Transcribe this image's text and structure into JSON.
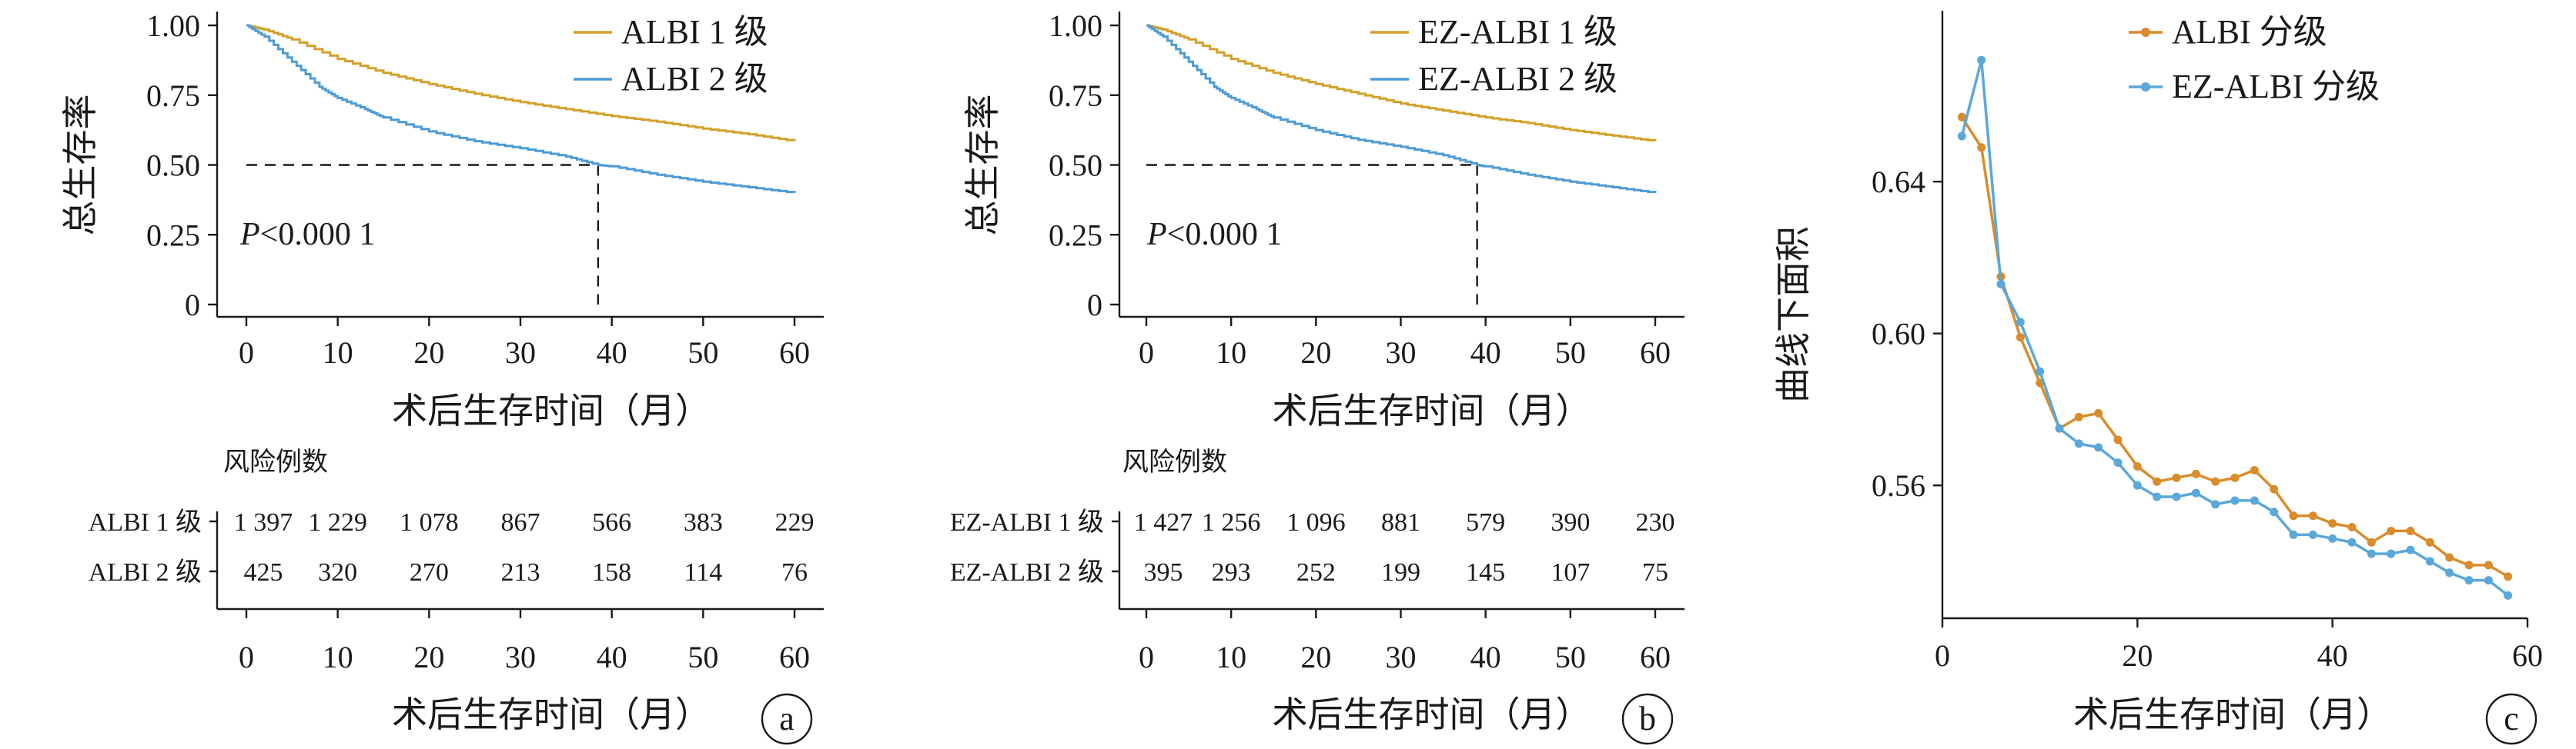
{
  "colors": {
    "orange": "#D4A02A",
    "blue": "#4E9BD5",
    "orange_c": "#D98C2B",
    "blue_c": "#5AA8DA",
    "axis": "#1a1a1a"
  },
  "chart_data": [
    {
      "panel": "a",
      "type": "line",
      "xlabel": "术后生存时间（月）",
      "ylabel": "总生存率",
      "xlim": [
        0,
        60
      ],
      "ylim": [
        0,
        1
      ],
      "xticks": [
        "0",
        "10",
        "20",
        "30",
        "40",
        "50",
        "60"
      ],
      "yticks": [
        "0",
        "0.25",
        "0.50",
        "0.75",
        "1.00"
      ],
      "legend_position": "top-right",
      "annotation_p": "P",
      "annotation_rest": "<0.000 1",
      "median_line": {
        "y": 0.5,
        "x": 38.5
      },
      "series": [
        {
          "name": "ALBI 1 级",
          "color": "orange",
          "x": [
            0,
            2,
            5,
            10,
            15,
            20,
            25,
            30,
            35,
            40,
            45,
            50,
            55,
            60
          ],
          "y": [
            1.0,
            0.985,
            0.95,
            0.88,
            0.83,
            0.79,
            0.755,
            0.725,
            0.7,
            0.675,
            0.655,
            0.63,
            0.61,
            0.585
          ]
        },
        {
          "name": "ALBI 2 级",
          "color": "blue",
          "x": [
            0,
            2,
            5,
            8,
            10,
            13,
            15,
            20,
            25,
            30,
            35,
            38.5,
            40,
            45,
            50,
            55,
            60
          ],
          "y": [
            1.0,
            0.96,
            0.87,
            0.78,
            0.74,
            0.7,
            0.67,
            0.62,
            0.585,
            0.56,
            0.53,
            0.5,
            0.495,
            0.465,
            0.44,
            0.42,
            0.4
          ]
        }
      ],
      "risk_table": {
        "title": "风险例数",
        "rows": [
          {
            "label": "ALBI 1 级",
            "values": [
              "1 397",
              "1 229",
              "1 078",
              "867",
              "566",
              "383",
              "229"
            ]
          },
          {
            "label": "ALBI 2 级",
            "values": [
              "425",
              "320",
              "270",
              "213",
              "158",
              "114",
              "76"
            ]
          }
        ],
        "xticks": [
          "0",
          "10",
          "20",
          "30",
          "40",
          "50",
          "60"
        ],
        "xlabel": "术后生存时间（月）"
      },
      "badge": "a"
    },
    {
      "panel": "b",
      "type": "line",
      "xlabel": "术后生存时间（月）",
      "ylabel": "总生存率",
      "xlim": [
        0,
        60
      ],
      "ylim": [
        0,
        1
      ],
      "xticks": [
        "0",
        "10",
        "20",
        "30",
        "40",
        "50",
        "60"
      ],
      "yticks": [
        "0",
        "0.25",
        "0.50",
        "0.75",
        "1.00"
      ],
      "legend_position": "top-right",
      "annotation_p": "P",
      "annotation_rest": "<0.000 1",
      "median_line": {
        "y": 0.5,
        "x": 39
      },
      "series": [
        {
          "name": "EZ-ALBI 1 级",
          "color": "orange",
          "x": [
            0,
            2,
            5,
            10,
            15,
            20,
            25,
            30,
            35,
            40,
            45,
            50,
            55,
            60
          ],
          "y": [
            1.0,
            0.985,
            0.95,
            0.88,
            0.83,
            0.79,
            0.755,
            0.72,
            0.695,
            0.67,
            0.65,
            0.625,
            0.605,
            0.585
          ]
        },
        {
          "name": "EZ-ALBI 2 级",
          "color": "blue",
          "x": [
            0,
            2,
            5,
            8,
            10,
            13,
            15,
            20,
            25,
            30,
            35,
            39,
            40,
            45,
            50,
            55,
            60
          ],
          "y": [
            1.0,
            0.96,
            0.87,
            0.78,
            0.74,
            0.7,
            0.67,
            0.625,
            0.59,
            0.565,
            0.535,
            0.5,
            0.495,
            0.465,
            0.44,
            0.42,
            0.4
          ]
        }
      ],
      "risk_table": {
        "title": "风险例数",
        "rows": [
          {
            "label": "EZ-ALBI 1 级",
            "values": [
              "1 427",
              "1 256",
              "1 096",
              "881",
              "579",
              "390",
              "230"
            ]
          },
          {
            "label": "EZ-ALBI 2 级",
            "values": [
              "395",
              "293",
              "252",
              "199",
              "145",
              "107",
              "75"
            ]
          }
        ],
        "xticks": [
          "0",
          "10",
          "20",
          "30",
          "40",
          "50",
          "60"
        ],
        "xlabel": "术后生存时间（月）"
      },
      "badge": "b"
    },
    {
      "panel": "c",
      "type": "line",
      "xlabel": "术后生存时间（月）",
      "ylabel": "曲线下面积",
      "xlim": [
        0,
        60
      ],
      "ylim": [
        0.525,
        0.685
      ],
      "xticks": [
        0,
        20,
        40,
        60
      ],
      "yticks": [
        0.56,
        0.6,
        0.64
      ],
      "legend_position": "top-center",
      "series": [
        {
          "name": "ALBI 分级",
          "color": "orange_c",
          "x": [
            2,
            4,
            6,
            8,
            10,
            12,
            14,
            16,
            18,
            20,
            22,
            24,
            26,
            28,
            30,
            32,
            34,
            36,
            38,
            40,
            42,
            44,
            46,
            48,
            50,
            52,
            54,
            56,
            58
          ],
          "y": [
            0.657,
            0.649,
            0.615,
            0.599,
            0.587,
            0.575,
            0.578,
            0.579,
            0.572,
            0.565,
            0.561,
            0.562,
            0.563,
            0.561,
            0.562,
            0.564,
            0.559,
            0.552,
            0.552,
            0.55,
            0.549,
            0.545,
            0.548,
            0.548,
            0.545,
            0.541,
            0.539,
            0.539,
            0.536
          ]
        },
        {
          "name": "EZ-ALBI 分级",
          "color": "blue_c",
          "x": [
            2,
            4,
            6,
            8,
            10,
            12,
            14,
            16,
            18,
            20,
            22,
            24,
            26,
            28,
            30,
            32,
            34,
            36,
            38,
            40,
            42,
            44,
            46,
            48,
            50,
            52,
            54,
            56,
            58
          ],
          "y": [
            0.652,
            0.672,
            0.613,
            0.603,
            0.59,
            0.575,
            0.571,
            0.57,
            0.566,
            0.56,
            0.557,
            0.557,
            0.558,
            0.555,
            0.556,
            0.556,
            0.553,
            0.547,
            0.547,
            0.546,
            0.545,
            0.542,
            0.542,
            0.543,
            0.54,
            0.537,
            0.535,
            0.535,
            0.531
          ]
        }
      ],
      "badge": "c"
    }
  ]
}
